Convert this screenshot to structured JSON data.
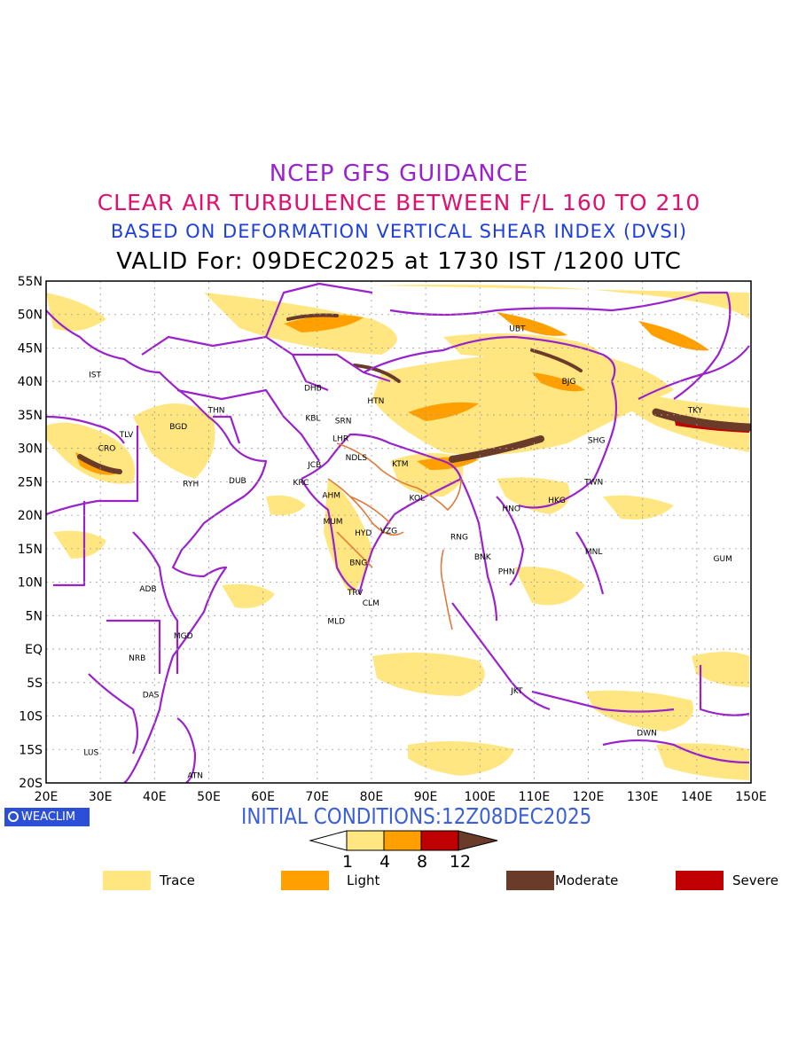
{
  "titles": {
    "line1": "NCEP GFS GUIDANCE",
    "line2": "CLEAR AIR TURBULENCE BETWEEN F/L 160 TO 210",
    "line3": "BASED ON DEFORMATION VERTICAL SHEAR INDEX (DVSI)",
    "line4": "VALID For: 09DEC2025 at 1730 IST /1200 UTC"
  },
  "axes": {
    "lon_labels": [
      "20E",
      "30E",
      "40E",
      "50E",
      "60E",
      "70E",
      "80E",
      "90E",
      "100E",
      "110E",
      "120E",
      "130E",
      "140E",
      "150E"
    ],
    "lat_labels": [
      "55N",
      "50N",
      "45N",
      "40N",
      "35N",
      "30N",
      "25N",
      "20N",
      "15N",
      "10N",
      "5N",
      "EQ",
      "5S",
      "10S",
      "15S",
      "20S"
    ],
    "lon_range": [
      20,
      150
    ],
    "lat_range": [
      -20,
      55
    ]
  },
  "stations": [
    {
      "code": "UBT",
      "lon": 106.9,
      "lat": 47.9
    },
    {
      "code": "IST",
      "lon": 29.0,
      "lat": 41.0
    },
    {
      "code": "BJG",
      "lon": 116.4,
      "lat": 40.0
    },
    {
      "code": "DHB",
      "lon": 69.2,
      "lat": 39.0
    },
    {
      "code": "HTN",
      "lon": 80.8,
      "lat": 37.1
    },
    {
      "code": "THN",
      "lon": 51.4,
      "lat": 35.7
    },
    {
      "code": "KBL",
      "lon": 69.2,
      "lat": 34.5
    },
    {
      "code": "SRN",
      "lon": 74.8,
      "lat": 34.1
    },
    {
      "code": "TKY",
      "lon": 139.7,
      "lat": 35.7
    },
    {
      "code": "BGD",
      "lon": 44.4,
      "lat": 33.3
    },
    {
      "code": "LHR",
      "lon": 74.3,
      "lat": 31.5
    },
    {
      "code": "TLV",
      "lon": 34.8,
      "lat": 32.1
    },
    {
      "code": "SHG",
      "lon": 121.5,
      "lat": 31.2
    },
    {
      "code": "CRO",
      "lon": 31.2,
      "lat": 30.0
    },
    {
      "code": "JCB",
      "lon": 69.5,
      "lat": 27.6
    },
    {
      "code": "NDLS",
      "lon": 77.2,
      "lat": 28.6
    },
    {
      "code": "KTM",
      "lon": 85.3,
      "lat": 27.7
    },
    {
      "code": "RYH",
      "lon": 46.7,
      "lat": 24.7
    },
    {
      "code": "DUB",
      "lon": 55.3,
      "lat": 25.2
    },
    {
      "code": "KRC",
      "lon": 67.0,
      "lat": 24.9
    },
    {
      "code": "TWN",
      "lon": 121.0,
      "lat": 25.0
    },
    {
      "code": "AHM",
      "lon": 72.6,
      "lat": 23.0
    },
    {
      "code": "KOL",
      "lon": 88.4,
      "lat": 22.6
    },
    {
      "code": "HKG",
      "lon": 114.2,
      "lat": 22.3
    },
    {
      "code": "HNO",
      "lon": 105.8,
      "lat": 21.0
    },
    {
      "code": "MUM",
      "lon": 72.9,
      "lat": 19.1
    },
    {
      "code": "HYD",
      "lon": 78.5,
      "lat": 17.4
    },
    {
      "code": "VZG",
      "lon": 83.2,
      "lat": 17.7
    },
    {
      "code": "RNG",
      "lon": 96.2,
      "lat": 16.8
    },
    {
      "code": "MNL",
      "lon": 121.0,
      "lat": 14.6
    },
    {
      "code": "BNK",
      "lon": 100.5,
      "lat": 13.8
    },
    {
      "code": "GUM",
      "lon": 144.8,
      "lat": 13.5
    },
    {
      "code": "BNG",
      "lon": 77.6,
      "lat": 12.9
    },
    {
      "code": "PHN",
      "lon": 104.9,
      "lat": 11.6
    },
    {
      "code": "ADB",
      "lon": 38.8,
      "lat": 9.0
    },
    {
      "code": "TRV",
      "lon": 77.0,
      "lat": 8.5
    },
    {
      "code": "CLM",
      "lon": 79.9,
      "lat": 6.9
    },
    {
      "code": "MLD",
      "lon": 73.5,
      "lat": 4.2
    },
    {
      "code": "MGD",
      "lon": 45.3,
      "lat": 2.0
    },
    {
      "code": "NRB",
      "lon": 36.8,
      "lat": -1.3
    },
    {
      "code": "DAS",
      "lon": 39.3,
      "lat": -6.8
    },
    {
      "code": "JKT",
      "lon": 106.8,
      "lat": -6.2
    },
    {
      "code": "DWN",
      "lon": 130.8,
      "lat": -12.5
    },
    {
      "code": "LUS",
      "lon": 28.3,
      "lat": -15.4
    },
    {
      "code": "ATN",
      "lon": 47.5,
      "lat": -18.9
    }
  ],
  "initial_conditions": "INITIAL CONDITIONS:12Z08DEC2025",
  "watermark": "WEACLIM",
  "colorbar": {
    "ticks": [
      "1",
      "4",
      "8",
      "12"
    ],
    "colors": [
      "#ffe680",
      "#ffa000",
      "#c00000",
      "#6b3b2a"
    ]
  },
  "legend": [
    {
      "label": "Trace",
      "color": "#ffe680"
    },
    {
      "label": "Light",
      "color": "#ffa000"
    },
    {
      "label": "Moderate",
      "color": "#6b3b2a"
    },
    {
      "label": "Severe",
      "color": "#c00000"
    }
  ],
  "colors": {
    "boundary": "#9a22cc",
    "india_boundary": "#e07a3a",
    "trace": "#ffe680",
    "light": "#ffa000",
    "severe": "#c00000",
    "moderate": "#6b3b2a"
  }
}
